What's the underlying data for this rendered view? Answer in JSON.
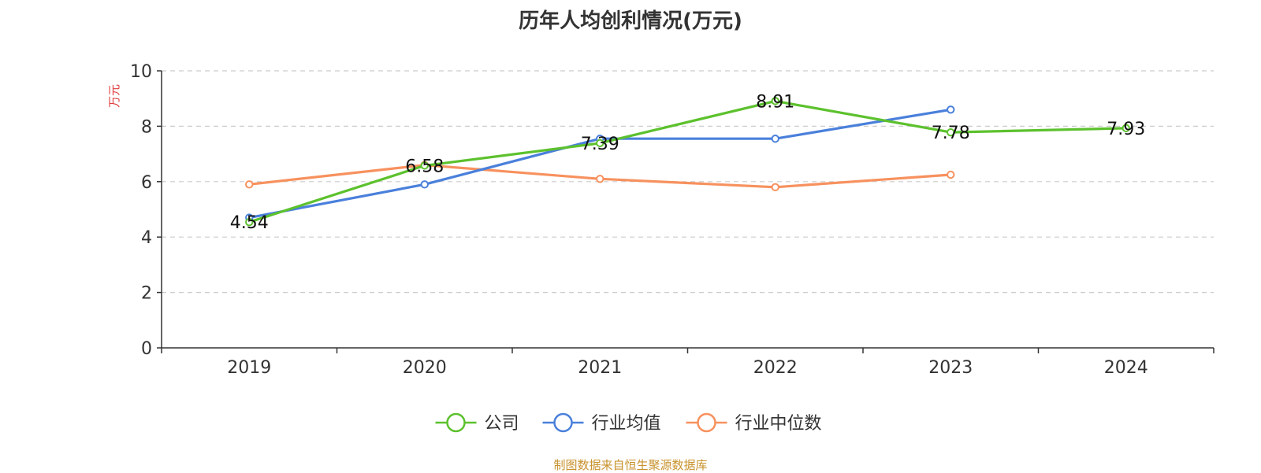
{
  "chart_data": {
    "type": "line",
    "title": "历年人均创利情况(万元)",
    "ylabel": "万元",
    "xlabel": "",
    "categories": [
      "2019",
      "2020",
      "2021",
      "2022",
      "2023",
      "2024"
    ],
    "ylim": [
      0,
      10
    ],
    "yticks": [
      0,
      2,
      4,
      6,
      8,
      10
    ],
    "grid": true,
    "legend_position": "bottom-center",
    "series": [
      {
        "name": "公司",
        "color": "#5cc12d",
        "values": [
          4.54,
          6.58,
          7.39,
          8.91,
          7.78,
          7.93
        ],
        "labels": [
          "4.54",
          "6.58",
          "7.39",
          "8.91",
          "7.78",
          "7.93"
        ]
      },
      {
        "name": "行业均值",
        "color": "#4a80db",
        "values": [
          4.7,
          5.9,
          7.55,
          7.55,
          8.6,
          null
        ]
      },
      {
        "name": "行业中位数",
        "color": "#f7915e",
        "values": [
          5.9,
          6.6,
          6.1,
          5.8,
          6.25,
          null
        ]
      }
    ]
  },
  "source": "制图数据来自恒生聚源数据库",
  "colors": {
    "axis": "#333333",
    "grid": "#cccccc",
    "ylabel": "#e03c3c",
    "source": "#c8922c"
  }
}
